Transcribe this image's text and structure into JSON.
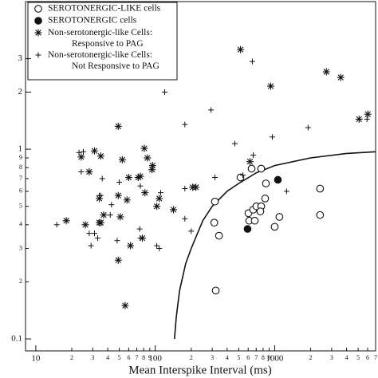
{
  "chart_data": {
    "type": "scatter",
    "x_label": "Mean Interspike Interval (ms)",
    "xlog": true,
    "ylog": true,
    "xlim": [
      8.2,
      7000
    ],
    "ylim": [
      0.0865,
      6
    ],
    "xticks": [
      10,
      {
        "value": 20,
        "label": "2"
      },
      {
        "value": 30,
        "label": "3"
      },
      {
        "value": 40,
        "label": "4"
      },
      {
        "value": 50,
        "label": "5"
      },
      {
        "value": 60,
        "label": "6"
      },
      {
        "value": 70,
        "label": "7"
      },
      {
        "value": 80,
        "label": "8"
      },
      {
        "value": 90,
        "label": "9"
      },
      100,
      {
        "value": 200,
        "label": "2"
      },
      {
        "value": 300,
        "label": "3"
      },
      {
        "value": 400,
        "label": "4"
      },
      {
        "value": 500,
        "label": "5"
      },
      {
        "value": 600,
        "label": "6"
      },
      {
        "value": 700,
        "label": "7"
      },
      {
        "value": 800,
        "label": "8"
      },
      {
        "value": 900,
        "label": "9"
      },
      1000,
      {
        "value": 2000,
        "label": "2"
      },
      {
        "value": 3000,
        "label": "3"
      },
      {
        "value": 4000,
        "label": "4"
      },
      {
        "value": 5000,
        "label": "5"
      },
      {
        "value": 6000,
        "label": "6"
      },
      {
        "value": 7000,
        "label": "7"
      }
    ],
    "yticks": [
      0.1,
      {
        "value": 0.2,
        "label": "2"
      },
      {
        "value": 0.3,
        "label": "3"
      },
      {
        "value": 0.4,
        "label": "4"
      },
      {
        "value": 0.5,
        "label": "5"
      },
      {
        "value": 0.6,
        "label": "6"
      },
      {
        "value": 0.7,
        "label": "7"
      },
      {
        "value": 0.8,
        "label": "8"
      },
      {
        "value": 0.9,
        "label": "9"
      },
      1,
      2,
      3
    ],
    "legend": "upper left",
    "series": [
      {
        "name": "SEROTONERGIC-LIKE cells",
        "marker": "open-circle",
        "color": "#111111",
        "x": [
          316,
          312,
          342,
          321,
          517,
          603,
          661,
          703,
          771,
          759,
          612,
          681,
          771,
          641,
          845,
          832,
          1000,
          1096,
          2399,
          2399
        ],
        "values": [
          0.53,
          0.41,
          0.35,
          0.18,
          0.71,
          0.46,
          0.48,
          0.5,
          0.5,
          0.47,
          0.42,
          0.42,
          0.79,
          0.79,
          0.66,
          0.55,
          0.39,
          0.44,
          0.62,
          0.45
        ]
      },
      {
        "name": "SEROTONERGIC cells",
        "marker": "filled-circle",
        "color": "#111111",
        "x": [
          593,
          1064
        ],
        "values": [
          0.38,
          0.69
        ]
      },
      {
        "name": "Non-serotonergic-like Cells: Responsive to PAG",
        "marker": "asterisk",
        "color": "#111111",
        "x": [
          517,
          926,
          2710,
          3573,
          6030,
          5090,
          49,
          31,
          24,
          35,
          28,
          81,
          53,
          86,
          72,
          75,
          60,
          95,
          94,
          58,
          82,
          108,
          142,
          219,
          49,
          34,
          35,
          26,
          18,
          34,
          37,
          51,
          103,
          78,
          62,
          49,
          56,
          621,
          206
        ],
        "values": [
          3.35,
          2.15,
          2.56,
          2.39,
          1.53,
          1.44,
          1.32,
          0.98,
          0.91,
          0.92,
          0.76,
          1.01,
          0.88,
          0.9,
          0.71,
          0.72,
          0.71,
          0.82,
          0.78,
          0.54,
          0.59,
          0.55,
          0.48,
          0.63,
          0.57,
          0.55,
          0.41,
          0.4,
          0.42,
          0.41,
          0.45,
          0.44,
          0.5,
          0.34,
          0.31,
          0.26,
          0.15,
          0.86,
          0.63
        ]
      },
      {
        "name": "Non-serotonergic-like Cells: Not Responsive to PAG",
        "marker": "plus",
        "color": "#111111",
        "x": [
          120,
          650,
          293,
          177,
          464,
          661,
          955,
          1905,
          5930,
          25,
          34,
          35,
          24,
          36,
          50,
          75,
          177,
          111,
          15,
          28,
          31,
          42,
          43,
          74,
          75,
          48,
          103,
          108,
          33,
          29,
          177,
          200,
          316,
          541,
          1259,
          23
        ],
        "values": [
          2.0,
          2.9,
          1.61,
          1.35,
          1.07,
          0.93,
          1.16,
          1.3,
          1.44,
          0.97,
          0.57,
          0.57,
          0.76,
          0.7,
          0.67,
          0.64,
          0.62,
          0.59,
          0.4,
          0.36,
          0.36,
          0.45,
          0.51,
          0.38,
          0.34,
          0.33,
          0.31,
          0.3,
          0.34,
          0.31,
          0.43,
          0.37,
          0.71,
          0.73,
          0.6,
          0.96
        ]
      }
    ],
    "curve": {
      "x": [
        145,
        150,
        160,
        180,
        200,
        250,
        300,
        400,
        500,
        700,
        1000,
        2000,
        4000,
        7000
      ],
      "values": [
        0.1,
        0.13,
        0.18,
        0.25,
        0.3,
        0.42,
        0.5,
        0.6,
        0.66,
        0.75,
        0.82,
        0.9,
        0.95,
        0.97
      ]
    }
  }
}
